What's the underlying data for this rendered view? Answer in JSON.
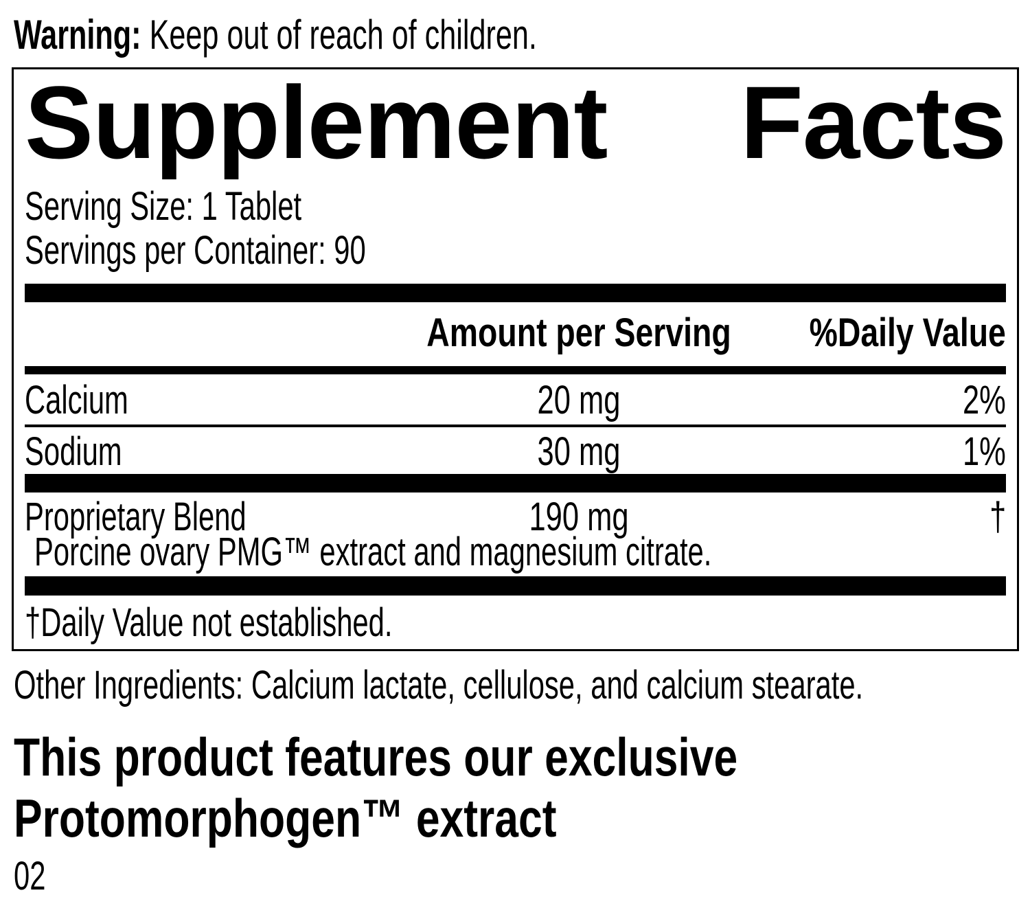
{
  "colors": {
    "ink": "#000000",
    "background": "#ffffff"
  },
  "warning": {
    "label": "Warning:",
    "text": " Keep out of reach of children."
  },
  "panel": {
    "title_left": "Supplement",
    "title_right": "Facts",
    "serving_size": "Serving Size: 1 Tablet",
    "servings_per_container": "Servings per Container: 90",
    "columns": {
      "amount": "Amount per Serving",
      "daily_value": "%Daily Value"
    },
    "rows": [
      {
        "name": "Calcium",
        "amount": "20 mg",
        "dv": "2%"
      },
      {
        "name": "Sodium",
        "amount": "30 mg",
        "dv": "1%"
      },
      {
        "name": "Proprietary Blend",
        "amount": "190 mg",
        "dv": "†",
        "description": "Porcine ovary PMG™ extract and magnesium citrate."
      }
    ],
    "footnote": "†Daily Value not established."
  },
  "other_ingredients": "Other Ingredients: Calcium lactate, cellulose, and calcium stearate.",
  "feature_heading": {
    "line1": "This product features our exclusive",
    "line2": "Protomorphogen™ extract"
  },
  "page_number": "02"
}
